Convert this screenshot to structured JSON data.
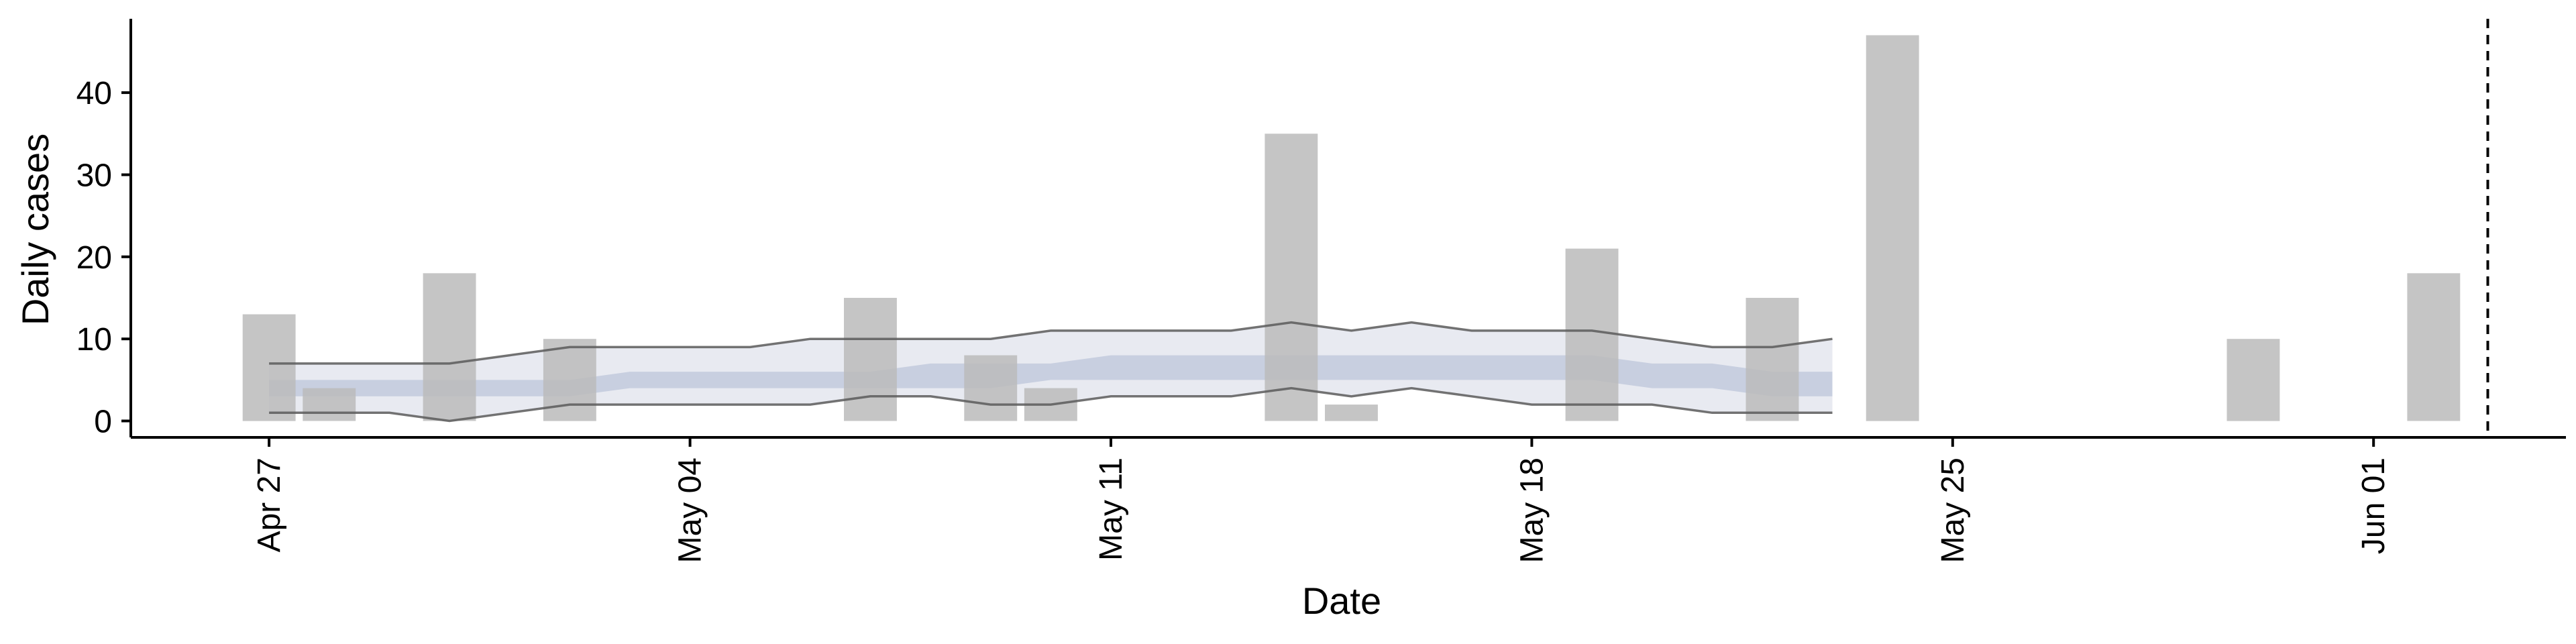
{
  "chart_data": {
    "type": "bar",
    "xlabel": "Date",
    "ylabel": "Daily cases",
    "ylim": [
      -2,
      49
    ],
    "y_ticks": [
      0,
      10,
      20,
      30,
      40
    ],
    "x_ticks": [
      {
        "day": 0,
        "label": "Apr 27"
      },
      {
        "day": 7,
        "label": "May 04"
      },
      {
        "day": 14,
        "label": "May 11"
      },
      {
        "day": 21,
        "label": "May 18"
      },
      {
        "day": 28,
        "label": "May 25"
      },
      {
        "day": 35,
        "label": "Jun 01"
      }
    ],
    "xlim_days": [
      -2.3,
      38.2
    ],
    "bars": [
      {
        "date": "Apr 27",
        "day": 0,
        "value": 13
      },
      {
        "date": "Apr 28",
        "day": 1,
        "value": 4
      },
      {
        "date": "Apr 30",
        "day": 3,
        "value": 18
      },
      {
        "date": "May 02",
        "day": 5,
        "value": 10
      },
      {
        "date": "May 07",
        "day": 10,
        "value": 15
      },
      {
        "date": "May 09",
        "day": 12,
        "value": 8
      },
      {
        "date": "May 10",
        "day": 13,
        "value": 4
      },
      {
        "date": "May 14",
        "day": 17,
        "value": 35
      },
      {
        "date": "May 15",
        "day": 18,
        "value": 2
      },
      {
        "date": "May 19",
        "day": 22,
        "value": 21
      },
      {
        "date": "May 22",
        "day": 25,
        "value": 15
      },
      {
        "date": "May 24",
        "day": 27,
        "value": 47
      },
      {
        "date": "May 30",
        "day": 33,
        "value": 10
      },
      {
        "date": "Jun 02",
        "day": 36,
        "value": 18
      }
    ],
    "forecast_days": [
      0,
      1,
      2,
      3,
      4,
      5,
      6,
      7,
      8,
      9,
      10,
      11,
      12,
      13,
      14,
      15,
      16,
      17,
      18,
      19,
      20,
      21,
      22,
      23,
      24,
      25,
      26
    ],
    "outer_upper": [
      7,
      7,
      7,
      7,
      8,
      9,
      9,
      9,
      9,
      10,
      10,
      10,
      10,
      11,
      11,
      11,
      11,
      12,
      11,
      12,
      11,
      11,
      11,
      10,
      9,
      9,
      10
    ],
    "outer_lower": [
      1,
      1,
      1,
      0,
      1,
      2,
      2,
      2,
      2,
      2,
      3,
      3,
      2,
      2,
      3,
      3,
      3,
      4,
      3,
      4,
      3,
      2,
      2,
      2,
      1,
      1,
      1
    ],
    "inner_upper": [
      5,
      5,
      5,
      5,
      5,
      5,
      6,
      6,
      6,
      6,
      6,
      7,
      7,
      7,
      8,
      8,
      8,
      8,
      8,
      8,
      8,
      8,
      8,
      7,
      7,
      6,
      6
    ],
    "inner_lower": [
      3,
      3,
      3,
      3,
      3,
      3,
      4,
      4,
      4,
      4,
      4,
      4,
      4,
      5,
      5,
      5,
      5,
      5,
      5,
      5,
      5,
      5,
      5,
      4,
      4,
      3,
      3
    ],
    "vline_day": 36.9,
    "colors": {
      "bar": "#bbbbbb",
      "outer_band": "#e8eaf1",
      "inner_band": "#c8cfe0",
      "band_edge": "#5a5a5a",
      "axis": "#000000",
      "vline": "#000000"
    }
  }
}
